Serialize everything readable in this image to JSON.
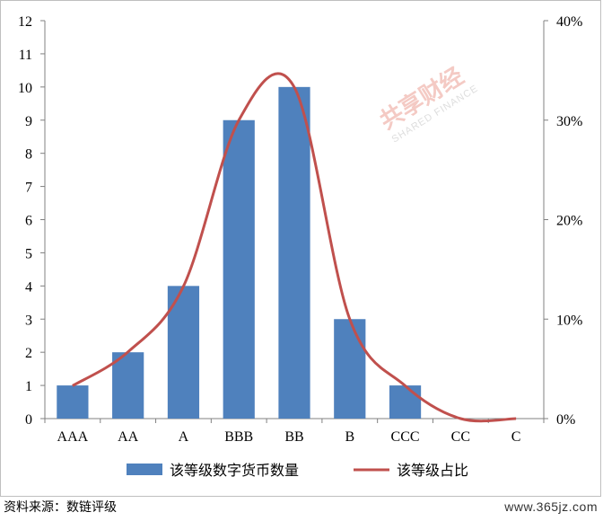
{
  "chart_data": {
    "type": "bar",
    "categories": [
      "AAA",
      "AA",
      "A",
      "BBB",
      "BB",
      "B",
      "CCC",
      "CC",
      "C"
    ],
    "series": [
      {
        "name": "该等级数字货币数量",
        "kind": "bar",
        "axis": "left",
        "values": [
          1,
          2,
          4,
          9,
          10,
          3,
          1,
          0,
          0
        ]
      },
      {
        "name": "该等级占比",
        "kind": "line",
        "axis": "right",
        "unit": "%",
        "values": [
          3.3,
          6.7,
          13.3,
          30.0,
          33.3,
          10.0,
          3.3,
          0,
          0
        ]
      }
    ],
    "ylim_left": [
      0,
      12
    ],
    "yticks_left": [
      "0",
      "1",
      "2",
      "3",
      "4",
      "5",
      "6",
      "7",
      "8",
      "9",
      "10",
      "11",
      "12"
    ],
    "ylim_right": [
      0,
      40
    ],
    "yticks_right": [
      "0%",
      "10%",
      "20%",
      "30%",
      "40%"
    ],
    "legend_position": "bottom",
    "grid": false,
    "colors": {
      "bar": "#4f81bd",
      "line": "#c0504d"
    }
  },
  "source_note": "资料来源：数链评级",
  "site_url": "www.365jz.com",
  "watermark": {
    "cn": "共享财经",
    "en": "SHARED FINANCE"
  }
}
